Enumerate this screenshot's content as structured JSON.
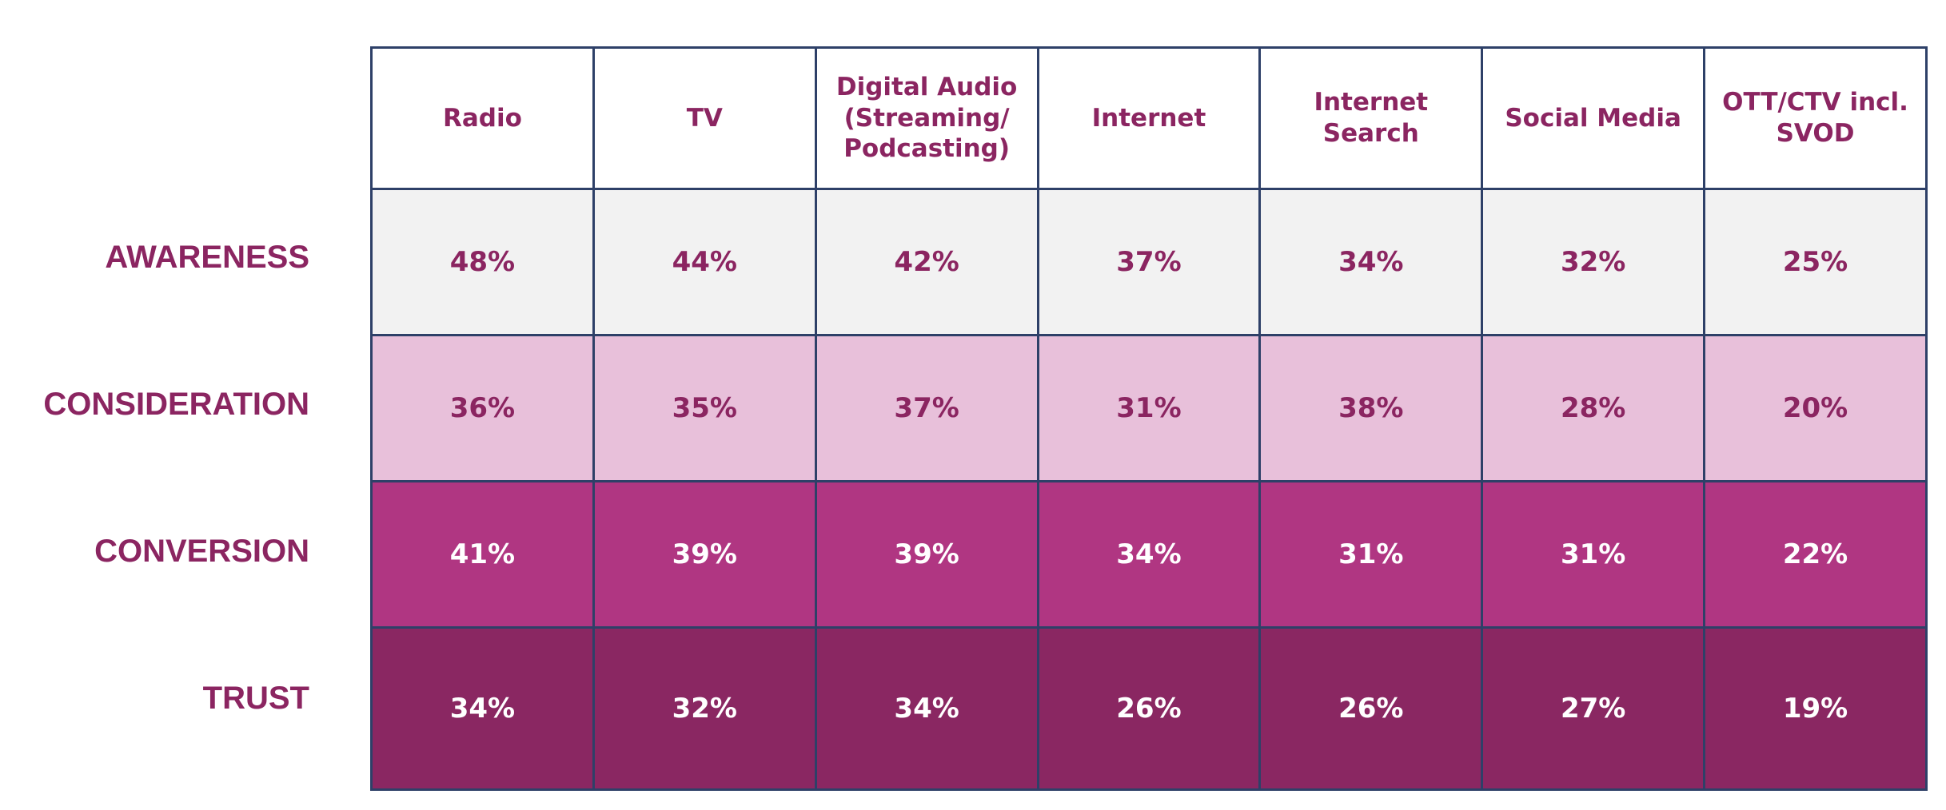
{
  "chart_data": {
    "type": "table",
    "columns": [
      "Radio",
      "TV",
      "Digital Audio (Streaming/ Podcasting)",
      "Internet",
      "Internet Search",
      "Social Media",
      "OTT/CTV incl. SVOD"
    ],
    "rows": [
      {
        "label": "AWARENESS",
        "values": [
          "48%",
          "44%",
          "42%",
          "37%",
          "34%",
          "32%",
          "25%"
        ]
      },
      {
        "label": "CONSIDERATION",
        "values": [
          "36%",
          "35%",
          "37%",
          "31%",
          "38%",
          "28%",
          "20%"
        ]
      },
      {
        "label": "CONVERSION",
        "values": [
          "41%",
          "39%",
          "39%",
          "34%",
          "31%",
          "31%",
          "22%"
        ]
      },
      {
        "label": "TRUST",
        "values": [
          "34%",
          "32%",
          "34%",
          "26%",
          "26%",
          "27%",
          "19%"
        ]
      }
    ],
    "colors": {
      "label_text": "#8b2561",
      "border": "#2e4068",
      "header_bg": "#ffffff",
      "awareness_bg": "#f2f2f2",
      "consideration_bg": "#e8c0da",
      "conversion_bg": "#b03682",
      "trust_bg": "#8a2762"
    }
  }
}
